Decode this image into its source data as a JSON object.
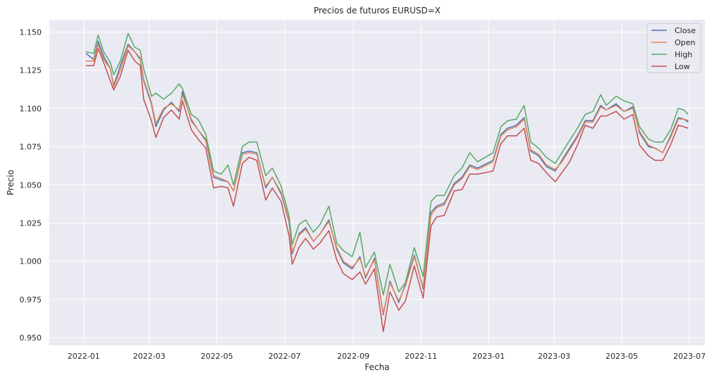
{
  "chart_data": {
    "type": "line",
    "title": "Precios de futuros EURUSD=X",
    "xlabel": "Fecha",
    "ylabel": "Precio",
    "xlim": [
      "2021-12-01",
      "2023-07-15"
    ],
    "ylim": [
      0.945,
      1.158
    ],
    "grid": true,
    "legend_position": "top-right",
    "x_ticks": [
      "2022-01",
      "2022-03",
      "2022-05",
      "2022-07",
      "2022-09",
      "2022-11",
      "2023-01",
      "2023-03",
      "2023-05",
      "2023-07"
    ],
    "y_ticks": [
      "0.950",
      "0.975",
      "1.000",
      "1.025",
      "1.050",
      "1.075",
      "1.100",
      "1.125",
      "1.150"
    ],
    "colors": {
      "background": "#eaeaf2",
      "grid": "#ffffff",
      "Close": "#4c72b0",
      "Open": "#dd8452",
      "High": "#55a868",
      "Low": "#c44e52"
    },
    "x": [
      "2022-01-03",
      "2022-01-10",
      "2022-01-14",
      "2022-01-19",
      "2022-01-25",
      "2022-01-28",
      "2022-02-03",
      "2022-02-10",
      "2022-02-16",
      "2022-02-21",
      "2022-02-24",
      "2022-03-03",
      "2022-03-07",
      "2022-03-14",
      "2022-03-21",
      "2022-03-28",
      "2022-03-31",
      "2022-04-08",
      "2022-04-14",
      "2022-04-21",
      "2022-04-28",
      "2022-05-05",
      "2022-05-11",
      "2022-05-16",
      "2022-05-24",
      "2022-05-30",
      "2022-06-06",
      "2022-06-14",
      "2022-06-20",
      "2022-06-28",
      "2022-07-05",
      "2022-07-08",
      "2022-07-14",
      "2022-07-20",
      "2022-07-27",
      "2022-08-02",
      "2022-08-10",
      "2022-08-17",
      "2022-08-23",
      "2022-08-31",
      "2022-09-07",
      "2022-09-12",
      "2022-09-20",
      "2022-09-28",
      "2022-10-04",
      "2022-10-12",
      "2022-10-18",
      "2022-10-26",
      "2022-11-03",
      "2022-11-10",
      "2022-11-15",
      "2022-11-22",
      "2022-12-01",
      "2022-12-08",
      "2022-12-15",
      "2022-12-22",
      "2023-01-05",
      "2023-01-12",
      "2023-01-18",
      "2023-01-26",
      "2023-02-02",
      "2023-02-08",
      "2023-02-15",
      "2023-02-22",
      "2023-03-02",
      "2023-03-08",
      "2023-03-15",
      "2023-03-22",
      "2023-03-29",
      "2023-04-05",
      "2023-04-12",
      "2023-04-17",
      "2023-04-26",
      "2023-05-03",
      "2023-05-11",
      "2023-05-17",
      "2023-05-25",
      "2023-05-31",
      "2023-06-07",
      "2023-06-14",
      "2023-06-21",
      "2023-06-26",
      "2023-06-30"
    ],
    "series": [
      {
        "name": "Close",
        "values": [
          1.136,
          1.132,
          1.144,
          1.134,
          1.126,
          1.115,
          1.128,
          1.142,
          1.137,
          1.132,
          1.118,
          1.103,
          1.088,
          1.099,
          1.104,
          1.098,
          1.111,
          1.092,
          1.086,
          1.079,
          1.055,
          1.053,
          1.052,
          1.046,
          1.071,
          1.072,
          1.071,
          1.048,
          1.055,
          1.044,
          1.026,
          1.005,
          1.018,
          1.022,
          1.013,
          1.018,
          1.027,
          1.008,
          0.999,
          0.995,
          1.003,
          0.989,
          1.002,
          0.965,
          0.987,
          0.973,
          0.985,
          1.004,
          0.982,
          1.032,
          1.036,
          1.038,
          1.051,
          1.055,
          1.063,
          1.061,
          1.066,
          1.083,
          1.087,
          1.089,
          1.094,
          1.072,
          1.069,
          1.062,
          1.059,
          1.066,
          1.074,
          1.082,
          1.092,
          1.092,
          1.102,
          1.099,
          1.103,
          1.098,
          1.101,
          1.084,
          1.075,
          1.074,
          1.071,
          1.082,
          1.094,
          1.093,
          1.091
        ]
      },
      {
        "name": "Open",
        "values": [
          1.131,
          1.131,
          1.142,
          1.132,
          1.126,
          1.114,
          1.125,
          1.141,
          1.137,
          1.133,
          1.119,
          1.104,
          1.09,
          1.1,
          1.103,
          1.099,
          1.109,
          1.093,
          1.086,
          1.08,
          1.056,
          1.054,
          1.052,
          1.046,
          1.07,
          1.071,
          1.07,
          1.049,
          1.055,
          1.045,
          1.027,
          1.006,
          1.017,
          1.021,
          1.013,
          1.018,
          1.026,
          1.009,
          1.0,
          0.996,
          1.002,
          0.99,
          1.001,
          0.966,
          0.986,
          0.974,
          0.984,
          1.003,
          0.983,
          1.03,
          1.035,
          1.037,
          1.05,
          1.054,
          1.062,
          1.06,
          1.065,
          1.082,
          1.086,
          1.088,
          1.093,
          1.073,
          1.07,
          1.063,
          1.06,
          1.065,
          1.073,
          1.081,
          1.091,
          1.091,
          1.101,
          1.099,
          1.102,
          1.098,
          1.1,
          1.085,
          1.076,
          1.074,
          1.071,
          1.081,
          1.093,
          1.093,
          1.092
        ]
      },
      {
        "name": "High",
        "values": [
          1.137,
          1.136,
          1.148,
          1.137,
          1.13,
          1.122,
          1.131,
          1.149,
          1.14,
          1.138,
          1.126,
          1.108,
          1.11,
          1.106,
          1.11,
          1.116,
          1.113,
          1.096,
          1.093,
          1.083,
          1.059,
          1.057,
          1.063,
          1.05,
          1.075,
          1.078,
          1.078,
          1.056,
          1.061,
          1.049,
          1.03,
          1.011,
          1.024,
          1.027,
          1.019,
          1.024,
          1.036,
          1.012,
          1.007,
          1.003,
          1.019,
          0.996,
          1.006,
          0.978,
          0.998,
          0.98,
          0.986,
          1.009,
          0.99,
          1.039,
          1.043,
          1.043,
          1.056,
          1.061,
          1.071,
          1.065,
          1.071,
          1.088,
          1.092,
          1.093,
          1.102,
          1.078,
          1.074,
          1.068,
          1.064,
          1.071,
          1.079,
          1.087,
          1.096,
          1.098,
          1.109,
          1.102,
          1.108,
          1.105,
          1.103,
          1.088,
          1.08,
          1.078,
          1.078,
          1.086,
          1.1,
          1.099,
          1.096
        ]
      },
      {
        "name": "Low",
        "values": [
          1.128,
          1.128,
          1.139,
          1.13,
          1.118,
          1.112,
          1.121,
          1.138,
          1.131,
          1.128,
          1.106,
          1.092,
          1.081,
          1.094,
          1.099,
          1.093,
          1.105,
          1.086,
          1.08,
          1.074,
          1.048,
          1.049,
          1.048,
          1.036,
          1.064,
          1.068,
          1.066,
          1.04,
          1.048,
          1.039,
          1.017,
          0.998,
          1.009,
          1.015,
          1.008,
          1.012,
          1.02,
          1.001,
          0.992,
          0.988,
          0.993,
          0.985,
          0.995,
          0.954,
          0.98,
          0.968,
          0.974,
          0.997,
          0.976,
          1.023,
          1.029,
          1.03,
          1.046,
          1.047,
          1.057,
          1.057,
          1.059,
          1.077,
          1.082,
          1.082,
          1.087,
          1.066,
          1.064,
          1.058,
          1.052,
          1.058,
          1.065,
          1.076,
          1.089,
          1.087,
          1.095,
          1.095,
          1.098,
          1.093,
          1.096,
          1.076,
          1.069,
          1.066,
          1.066,
          1.076,
          1.089,
          1.088,
          1.087
        ]
      }
    ]
  }
}
